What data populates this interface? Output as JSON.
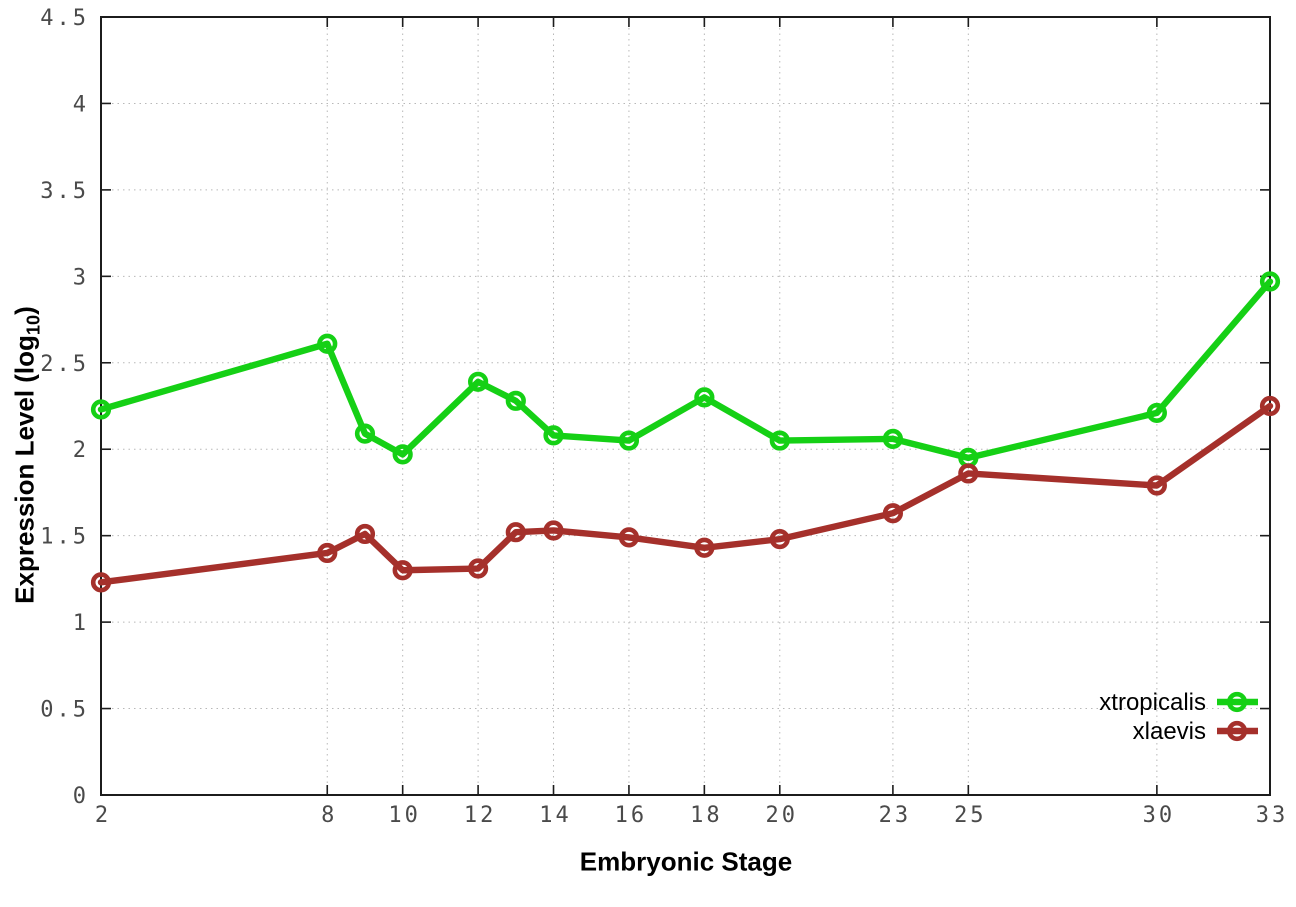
{
  "figure": {
    "background": "#ffffff"
  },
  "axes": {
    "xlabel": "Embryonic Stage",
    "ylabel_main": "Expression Level (log",
    "ylabel_sub": "10",
    "ylabel_tail": ")"
  },
  "chart_data": {
    "type": "line",
    "title": "",
    "xlabel": "Embryonic Stage",
    "ylabel": "Expression Level (log10)",
    "x": [
      2,
      8,
      9,
      10,
      12,
      13,
      14,
      16,
      18,
      20,
      23,
      25,
      30,
      33
    ],
    "series": [
      {
        "name": "xtropicalis",
        "color": "#15d015",
        "marker": "open-circle",
        "values": [
          2.23,
          2.61,
          2.09,
          1.97,
          2.39,
          2.28,
          2.08,
          2.05,
          2.3,
          2.05,
          2.06,
          1.95,
          2.21,
          2.97
        ]
      },
      {
        "name": "xlaevis",
        "color": "#a5302b",
        "marker": "open-circle",
        "values": [
          1.23,
          1.4,
          1.51,
          1.3,
          1.31,
          1.52,
          1.53,
          1.49,
          1.43,
          1.48,
          1.63,
          1.86,
          1.79,
          2.25
        ]
      }
    ],
    "xlim": [
      2,
      33
    ],
    "ylim": [
      0,
      4.5
    ],
    "xticks": [
      "2",
      "8",
      "10",
      "12",
      "14",
      "16",
      "18",
      "20",
      "23",
      "25",
      "30",
      "33"
    ],
    "yticks": [
      "0",
      "0.5",
      "1",
      "1.5",
      "2",
      "2.5",
      "3",
      "3.5",
      "4",
      "4.5"
    ],
    "grid": "dotted",
    "legend_position": "bottom-right",
    "colors": {
      "grid": "#b8b8b8",
      "axis": "#1c1c1c",
      "tick_text": "#4a4a4a",
      "legend_text": "#000000"
    }
  }
}
